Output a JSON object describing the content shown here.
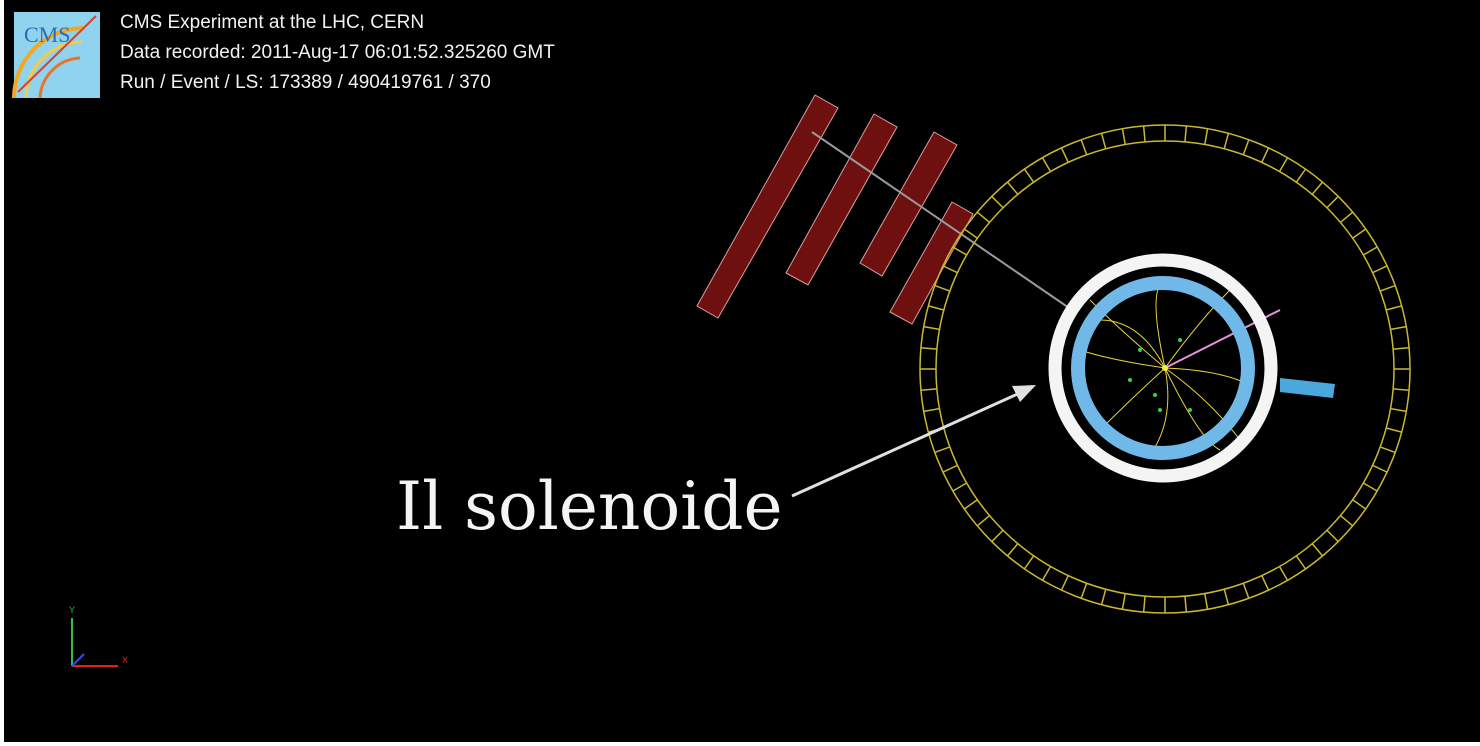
{
  "header": {
    "logo": "CMS",
    "lines": [
      "CMS Experiment at the LHC, CERN",
      "Data recorded: 2011-Aug-17 06:01:52.325260 GMT",
      "Run / Event / LS: 173389 / 490419761 / 370"
    ]
  },
  "annotation": "Il solenoide",
  "axes": {
    "y": "Y",
    "x": "X"
  }
}
